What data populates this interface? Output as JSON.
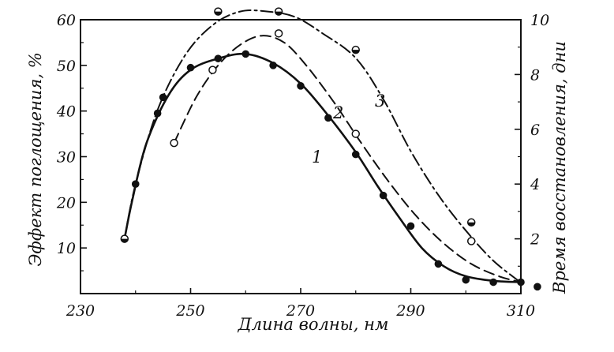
{
  "chart_data": {
    "type": "line",
    "xlabel": "Длина волны, нм",
    "ylabel_left": "Эффект поглощения, %",
    "ylabel_right": "Время восстановления, дни",
    "xlim": [
      230,
      310
    ],
    "ylim_left": [
      0,
      60
    ],
    "ylim_right": [
      0,
      10
    ],
    "x_ticks": [
      230,
      250,
      270,
      290,
      310
    ],
    "y_ticks_left": [
      10,
      20,
      30,
      40,
      50,
      60
    ],
    "y_ticks_right": [
      2,
      4,
      6,
      8,
      10
    ],
    "grid": false,
    "series": [
      {
        "name": "1",
        "axis": "left",
        "style": "solid",
        "marker": "filled",
        "points": [
          [
            238,
            12
          ],
          [
            240,
            24
          ],
          [
            244,
            39.5
          ],
          [
            245,
            43
          ],
          [
            250,
            49.5
          ],
          [
            255,
            51.5
          ],
          [
            260,
            52.5
          ],
          [
            265,
            50
          ],
          [
            270,
            45.5
          ],
          [
            275,
            38.5
          ],
          [
            280,
            30.5
          ],
          [
            285,
            21.5
          ],
          [
            290,
            14.8
          ],
          [
            295,
            6.5
          ],
          [
            300,
            3
          ],
          [
            305,
            2.5
          ],
          [
            310,
            2.5
          ],
          [
            313,
            1.5
          ]
        ],
        "curve": [
          [
            238,
            12
          ],
          [
            239.5,
            21
          ],
          [
            242,
            33
          ],
          [
            246,
            43.5
          ],
          [
            250,
            49
          ],
          [
            255,
            51.5
          ],
          [
            260,
            52.5
          ],
          [
            265,
            50.5
          ],
          [
            270,
            46
          ],
          [
            275,
            39
          ],
          [
            280,
            31
          ],
          [
            284,
            23.5
          ],
          [
            288,
            16.5
          ],
          [
            292,
            10
          ],
          [
            296,
            6
          ],
          [
            300,
            3.8
          ],
          [
            305,
            2.8
          ],
          [
            310,
            2.5
          ]
        ]
      },
      {
        "name": "2",
        "axis": "left",
        "style": "dashed",
        "marker": "open",
        "points": [
          [
            247,
            33
          ],
          [
            254,
            49
          ],
          [
            266,
            57
          ],
          [
            280,
            35
          ],
          [
            301,
            11.5
          ]
        ],
        "curve": [
          [
            247,
            33
          ],
          [
            251,
            43
          ],
          [
            255,
            50
          ],
          [
            259,
            54.5
          ],
          [
            263,
            56.5
          ],
          [
            267,
            55
          ],
          [
            271,
            50
          ],
          [
            276,
            42
          ],
          [
            281,
            33
          ],
          [
            286,
            24.5
          ],
          [
            291,
            17
          ],
          [
            296,
            11
          ],
          [
            301,
            6.5
          ],
          [
            306,
            3.8
          ],
          [
            310,
            2.5
          ]
        ]
      },
      {
        "name": "3",
        "axis": "right",
        "style": "dash-dot",
        "marker": "half",
        "points": [
          [
            238,
            2
          ],
          [
            255,
            10.3
          ],
          [
            266,
            10.3
          ],
          [
            280,
            8.9
          ],
          [
            301,
            2.6
          ]
        ],
        "curve": [
          [
            238,
            2
          ],
          [
            240,
            4
          ],
          [
            244,
            6.7
          ],
          [
            249,
            8.7
          ],
          [
            254,
            9.8
          ],
          [
            259,
            10.3
          ],
          [
            264,
            10.3
          ],
          [
            269,
            10.1
          ],
          [
            274,
            9.5
          ],
          [
            280,
            8.6
          ],
          [
            285,
            7.1
          ],
          [
            290,
            5.2
          ],
          [
            295,
            3.6
          ],
          [
            300,
            2.3
          ],
          [
            305,
            1.2
          ],
          [
            310,
            0.4
          ]
        ]
      }
    ]
  }
}
